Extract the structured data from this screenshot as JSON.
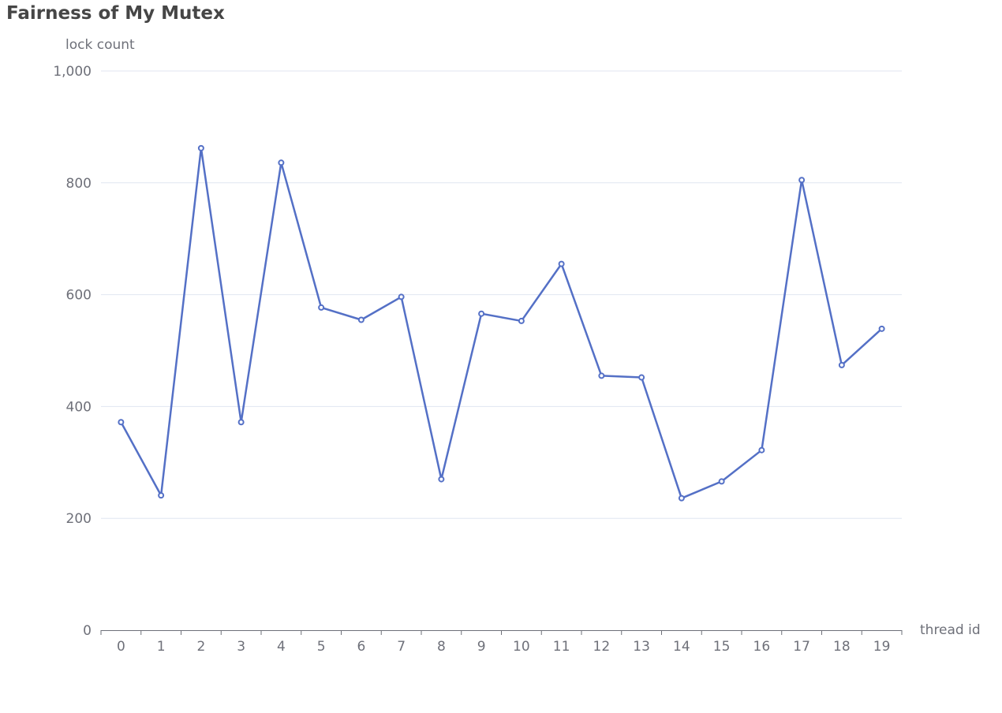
{
  "chart_data": {
    "type": "line",
    "title": "Fairness of My Mutex",
    "xlabel": "thread id",
    "ylabel": "lock count",
    "categories": [
      "0",
      "1",
      "2",
      "3",
      "4",
      "5",
      "6",
      "7",
      "8",
      "9",
      "10",
      "11",
      "12",
      "13",
      "14",
      "15",
      "16",
      "17",
      "18",
      "19"
    ],
    "series": [
      {
        "values": [
          372,
          241,
          862,
          372,
          836,
          577,
          555,
          596,
          270,
          566,
          553,
          655,
          455,
          452,
          236,
          266,
          322,
          805,
          474,
          539
        ]
      }
    ],
    "ylim": [
      0,
      1000
    ],
    "yticks": [
      0,
      200,
      400,
      600,
      800,
      1000
    ],
    "ytick_labels": [
      "0",
      "200",
      "400",
      "600",
      "800",
      "1,000"
    ],
    "grid": true,
    "legend": "none",
    "colors": {
      "line": "#5470c6",
      "grid": "#e0e6f1",
      "axis": "#6e7079",
      "title": "#464646"
    }
  }
}
